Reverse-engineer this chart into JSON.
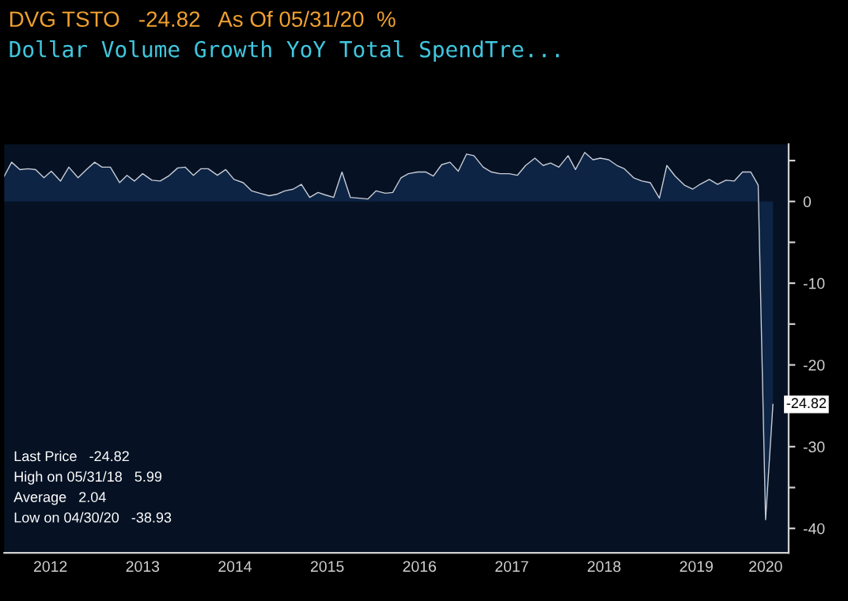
{
  "chart_data": {
    "type": "area",
    "title": "Dollar Volume Growth YoY Total SpendTre...",
    "subtitle": "DVG TSTO   -24.82   As Of 05/31/20  %",
    "x": [
      2012.0,
      2012.08,
      2012.17,
      2012.26,
      2012.34,
      2012.43,
      2012.51,
      2012.61,
      2012.7,
      2012.8,
      2012.89,
      2012.98,
      2013.06,
      2013.15,
      2013.25,
      2013.33,
      2013.41,
      2013.5,
      2013.6,
      2013.69,
      2013.78,
      2013.88,
      2013.96,
      2014.05,
      2014.13,
      2014.21,
      2014.31,
      2014.4,
      2014.49,
      2014.59,
      2014.68,
      2014.77,
      2014.87,
      2014.96,
      2015.04,
      2015.13,
      2015.22,
      2015.31,
      2015.4,
      2015.48,
      2015.57,
      2015.66,
      2015.75,
      2015.85,
      2015.94,
      2016.03,
      2016.13,
      2016.21,
      2016.3,
      2016.38,
      2016.48,
      2016.57,
      2016.65,
      2016.74,
      2016.83,
      2016.92,
      2017.01,
      2017.09,
      2017.19,
      2017.28,
      2017.37,
      2017.47,
      2017.56,
      2017.65,
      2017.75,
      2017.84,
      2017.92,
      2018.01,
      2018.11,
      2018.19,
      2018.29,
      2018.38,
      2018.46,
      2018.55,
      2018.64,
      2018.72,
      2018.82,
      2018.91,
      2019.0,
      2019.1,
      2019.18,
      2019.27,
      2019.37,
      2019.46,
      2019.54,
      2019.64,
      2019.73,
      2019.82,
      2019.91,
      2020.0,
      2020.09,
      2020.17,
      2020.25,
      2020.33
    ],
    "series": [
      {
        "color": "#c8cdd6",
        "values": [
          3.1,
          4.8,
          3.9,
          4.0,
          3.9,
          2.9,
          3.7,
          2.5,
          4.2,
          2.9,
          3.9,
          4.8,
          4.2,
          4.2,
          2.3,
          3.2,
          2.5,
          3.4,
          2.6,
          2.5,
          3.1,
          4.1,
          4.2,
          3.2,
          4.0,
          4.0,
          3.2,
          3.9,
          2.7,
          2.3,
          1.3,
          1.0,
          0.7,
          0.9,
          1.3,
          1.5,
          2.1,
          0.5,
          1.1,
          0.8,
          0.5,
          3.6,
          0.5,
          0.4,
          0.3,
          1.3,
          1.0,
          1.1,
          2.9,
          3.4,
          3.6,
          3.6,
          3.1,
          4.5,
          4.8,
          3.7,
          5.8,
          5.6,
          4.2,
          3.6,
          3.4,
          3.4,
          3.2,
          4.4,
          5.3,
          4.4,
          4.7,
          4.2,
          5.6,
          3.9,
          6.0,
          5.1,
          5.3,
          5.1,
          4.4,
          4.0,
          2.9,
          2.5,
          2.3,
          0.4,
          4.4,
          3.1,
          2.0,
          1.5,
          2.1,
          2.7,
          2.1,
          2.6,
          2.5,
          3.6,
          3.6,
          2.0,
          -38.93,
          -24.82
        ]
      }
    ],
    "xlim": [
      2012.0,
      2020.5
    ],
    "xticks": [
      {
        "value": 2012.5,
        "label": "2012"
      },
      {
        "value": 2013.5,
        "label": "2013"
      },
      {
        "value": 2014.5,
        "label": "2014"
      },
      {
        "value": 2015.5,
        "label": "2015"
      },
      {
        "value": 2016.5,
        "label": "2016"
      },
      {
        "value": 2017.5,
        "label": "2017"
      },
      {
        "value": 2018.5,
        "label": "2018"
      },
      {
        "value": 2019.5,
        "label": "2019"
      },
      {
        "value": 2020.25,
        "label": "2020"
      }
    ],
    "ylim": [
      -43,
      7
    ],
    "yticks": [
      {
        "value": 5,
        "label": null
      },
      0,
      {
        "value": -5,
        "label": null
      },
      -10,
      {
        "value": -15,
        "label": null
      },
      -20,
      {
        "value": -25,
        "label": null
      },
      -30,
      {
        "value": -35,
        "label": null
      },
      -40
    ],
    "annotations": [
      {
        "text": "-24.82",
        "x": 2020.33,
        "y": -24.82
      },
      "Last Price   -24.82",
      "High on 05/31/18   5.99",
      "Average   2.04",
      "Low on 04/30/20   -38.93"
    ]
  }
}
